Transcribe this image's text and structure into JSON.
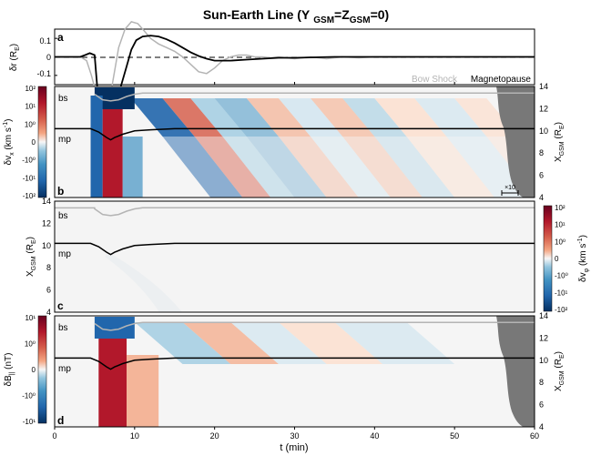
{
  "figure": {
    "title_main": "Sun-Earth Line (Y",
    "title_sub1": "GSM",
    "title_mid": "=Z",
    "title_sub2": "GSM",
    "title_end": "=0)",
    "time_label": "t (min)",
    "legend_bow_shock": "Bow Shock",
    "legend_magnetopause": "Magnetopause",
    "bs_label": "bs",
    "mp_label": "mp",
    "scale_label": "×10",
    "colors": {
      "bow_shock": "#b4b4b4",
      "magnetopause": "#000000",
      "solar_wind_fill": "#787878",
      "positive": "#b2182b",
      "negative": "#2166ac",
      "zero": "#f7f7f7"
    }
  },
  "chart_data": [
    {
      "panel": "a",
      "type": "line",
      "ylabel": "δr (R_E)",
      "ylabel_main": "δr (R",
      "ylabel_sub": "E",
      "ylabel_end": ")",
      "xlim": [
        0,
        60
      ],
      "ylim": [
        -0.15,
        0.15
      ],
      "x_ticks": [
        0,
        10,
        20,
        30,
        40,
        50,
        60
      ],
      "y_ticks": [
        "-0.1",
        "0",
        "0.1"
      ],
      "y_tick_values": [
        -0.1,
        0,
        0.1
      ],
      "zero_line": "dashed",
      "series": [
        {
          "name": "Bow Shock",
          "color": "#b4b4b4",
          "x": [
            0,
            3.2,
            4.0,
            4.6,
            5.2,
            6,
            7,
            8,
            8.8,
            9.6,
            10.4,
            11.2,
            12,
            13,
            14,
            15,
            16,
            17,
            18,
            19,
            20,
            21,
            22,
            23,
            24,
            25,
            26,
            27,
            28,
            30,
            32,
            34,
            36,
            38,
            40,
            45,
            50,
            55,
            60
          ],
          "y": [
            0,
            0,
            -0.02,
            -0.1,
            -0.2,
            -0.2,
            -0.2,
            0.05,
            0.15,
            0.19,
            0.18,
            0.14,
            0.1,
            0.07,
            0.05,
            0.03,
            0.0,
            -0.04,
            -0.08,
            -0.09,
            -0.06,
            -0.02,
            0.0,
            0.01,
            0.01,
            0.0,
            0.0,
            -0.005,
            0.0,
            -0.01,
            0.0,
            -0.01,
            0.0,
            -0.005,
            0.0,
            0.0,
            0.0,
            0.0,
            0.0
          ]
        },
        {
          "name": "Magnetopause",
          "color": "#000000",
          "x": [
            0,
            3.2,
            3.8,
            4.4,
            5.0,
            5.4,
            6,
            7,
            8,
            9,
            9.6,
            10.2,
            11,
            12,
            13,
            14,
            15,
            16,
            17,
            18,
            19,
            20,
            22,
            24,
            26,
            28,
            30,
            35,
            40,
            45,
            50,
            55,
            60
          ],
          "y": [
            0,
            0,
            0.01,
            0.02,
            0.01,
            -0.2,
            -0.2,
            -0.2,
            -0.2,
            -0.05,
            0.04,
            0.09,
            0.11,
            0.115,
            0.11,
            0.095,
            0.075,
            0.05,
            0.025,
            0.005,
            -0.01,
            -0.02,
            -0.02,
            -0.015,
            -0.01,
            -0.005,
            -0.005,
            0.0,
            0.0,
            0.0,
            0.0,
            0.0,
            0.0
          ]
        }
      ]
    },
    {
      "panel": "b",
      "type": "heatmap",
      "ylabel_main": "δv",
      "ylabel_sub": "x",
      "ylabel_end": " (km s",
      "ylabel_sup": "-1",
      "ylabel_close": ")",
      "right_label_main": "X",
      "right_label_sub": "GSM",
      "right_label_end": " (R",
      "right_label_sub2": "E",
      "right_label_close": ")",
      "xlim": [
        0,
        60
      ],
      "ylim": [
        4,
        14
      ],
      "y_ticks": [
        4,
        6,
        8,
        10,
        12,
        14
      ],
      "colorbar_ticks": [
        "10²",
        "10¹",
        "10⁰",
        "0",
        "-10⁰",
        "-10¹",
        "-10²"
      ],
      "bow_shock_x": [
        5.0,
        6,
        7,
        8,
        9,
        10,
        11,
        12,
        15,
        20,
        30,
        40,
        50,
        60
      ],
      "bow_shock_y": [
        13.3,
        12.8,
        12.7,
        12.8,
        13.1,
        13.3,
        13.4,
        13.4,
        13.4,
        13.4,
        13.4,
        13.4,
        13.4,
        13.4
      ],
      "magnetopause_x": [
        0,
        4.5,
        5.5,
        6.5,
        7,
        7.5,
        8.5,
        10,
        12,
        15,
        20,
        30,
        40,
        50,
        60
      ],
      "magnetopause_y": [
        10.2,
        10.2,
        9.9,
        9.4,
        9.2,
        9.4,
        9.7,
        10.0,
        10.1,
        10.2,
        10.2,
        10.2,
        10.2,
        10.2,
        10.2
      ]
    },
    {
      "panel": "c",
      "type": "heatmap",
      "ylabel_main": "X",
      "ylabel_sub": "GSM",
      "ylabel_end": " (R",
      "ylabel_sub2": "E",
      "ylabel_close": ")",
      "right_label_main": "δv",
      "right_label_sub": "φ",
      "right_label_end": " (km s",
      "right_label_sup": "-1",
      "right_label_close": ")",
      "xlim": [
        0,
        60
      ],
      "ylim": [
        4,
        14
      ],
      "y_ticks": [
        4,
        6,
        8,
        10,
        12,
        14
      ],
      "colorbar_ticks": [
        "10²",
        "10¹",
        "10⁰",
        "0",
        "-10⁰",
        "-10¹",
        "-10²"
      ]
    },
    {
      "panel": "d",
      "type": "heatmap",
      "ylabel_main": "δB",
      "ylabel_sub": "||",
      "ylabel_end": " (nT)",
      "right_label_main": "X",
      "right_label_sub": "GSM",
      "right_label_end": " (R",
      "right_label_sub2": "E",
      "right_label_close": ")",
      "xlim": [
        0,
        60
      ],
      "ylim": [
        4,
        14
      ],
      "x_ticks": [
        0,
        10,
        20,
        30,
        40,
        50,
        60
      ],
      "y_ticks": [
        4,
        6,
        8,
        10,
        12,
        14
      ],
      "colorbar_ticks": [
        "10¹",
        "10⁰",
        "0",
        "-10⁰",
        "-10¹"
      ]
    }
  ]
}
